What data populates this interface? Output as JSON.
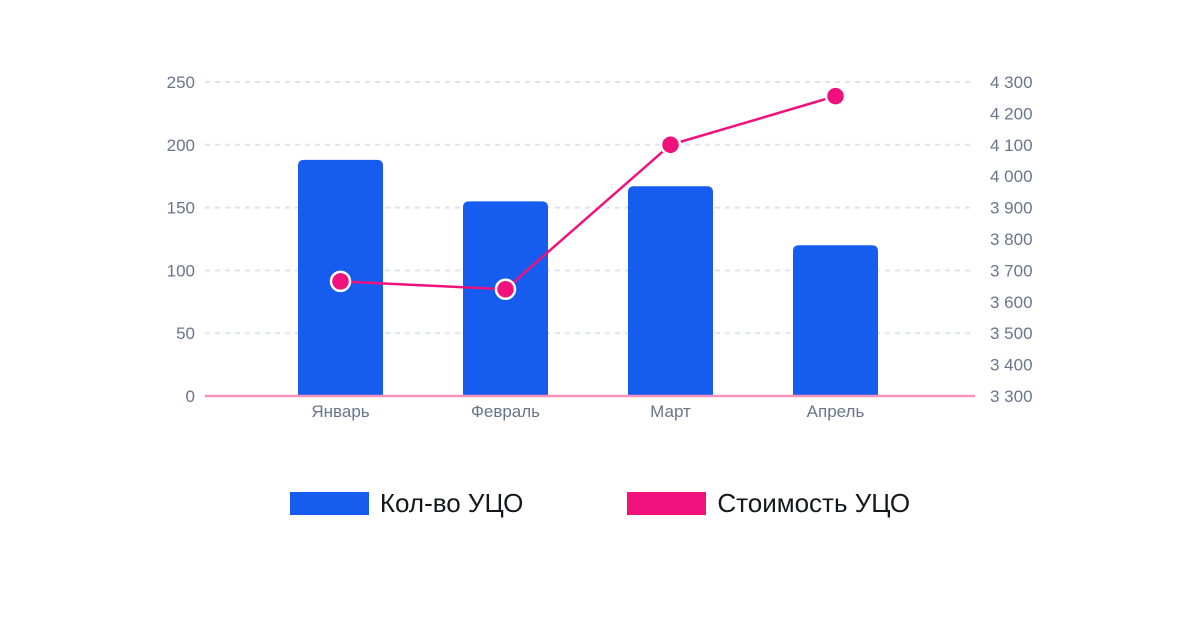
{
  "chart_data": {
    "type": "combo",
    "title": "",
    "categories": [
      "Январь",
      "Февраль",
      "Март",
      "Апрель"
    ],
    "series": [
      {
        "name": "Кол-во УЦО",
        "type": "bar",
        "axis": "left",
        "color": "#155CEF",
        "values": [
          188,
          155,
          167,
          120
        ]
      },
      {
        "name": "Стоимость УЦО",
        "type": "line",
        "axis": "right",
        "color": "#F0117D",
        "values": [
          3665,
          3640,
          4100,
          4255
        ]
      }
    ],
    "left_axis": {
      "min": 0,
      "max": 250,
      "step": 50,
      "tick_labels": [
        "0",
        "50",
        "100",
        "150",
        "200",
        "250"
      ]
    },
    "right_axis": {
      "min": 3300,
      "max": 4300,
      "step": 100,
      "tick_labels": [
        "3 300",
        "3 400",
        "3 500",
        "3 600",
        "3 700",
        "3 800",
        "3 900",
        "4 000",
        "4 100",
        "4 200",
        "4 300"
      ]
    },
    "grid": "dashed-horizontal",
    "legend_position": "bottom",
    "colors": {
      "background": "#FFFFFF",
      "gridline": "#DFE4EC",
      "baseline": "#F792BD",
      "tick_text": "#69758B",
      "category_text": "#69758B",
      "legend_text": "#15171C",
      "point_border": "#FFFFFF"
    }
  },
  "legend": {
    "items": [
      {
        "label": "Кол-во УЦО",
        "color": "#155CEF"
      },
      {
        "label": "Стоимость УЦО",
        "color": "#F0117D"
      }
    ]
  }
}
